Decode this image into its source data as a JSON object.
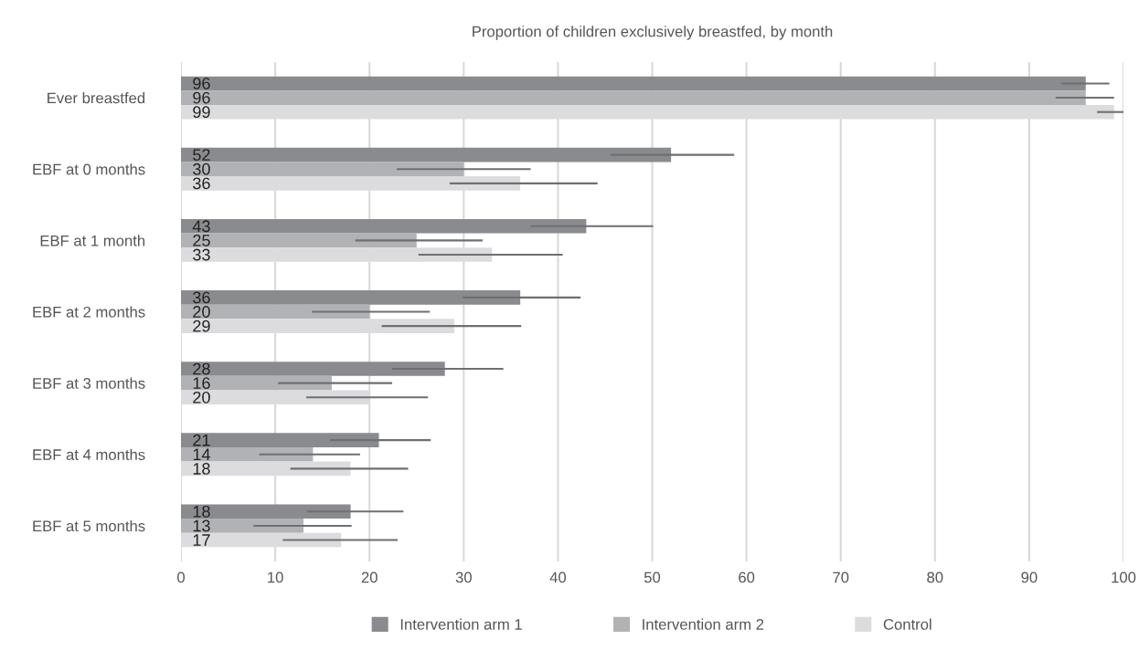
{
  "chart_data": {
    "type": "bar",
    "orientation": "horizontal",
    "title": "Proportion of children exclusively breastfed, by month",
    "categories": [
      "Ever breastfed",
      "EBF at 0 months",
      "EBF at 1 month",
      "EBF at 2 months",
      "EBF at 3 months",
      "EBF at 4 months",
      "EBF at 5 months"
    ],
    "series": [
      {
        "name": "Intervention arm 1",
        "color": "#8a8b8f",
        "values": [
          96,
          52,
          43,
          36,
          28,
          21,
          18
        ],
        "errors": [
          [
            93.5,
            98.4
          ],
          [
            45.7,
            58.6
          ],
          [
            37.2,
            50.0
          ],
          [
            30.0,
            42.3
          ],
          [
            22.5,
            34.1
          ],
          [
            15.9,
            26.4
          ],
          [
            13.5,
            23.5
          ]
        ]
      },
      {
        "name": "Intervention arm 2",
        "color": "#b1b2b5",
        "values": [
          96,
          30,
          25,
          20,
          16,
          14,
          13
        ],
        "errors": [
          [
            92.9,
            98.9
          ],
          [
            23.0,
            37.0
          ],
          [
            18.6,
            31.9
          ],
          [
            14.0,
            26.3
          ],
          [
            10.4,
            22.3
          ],
          [
            8.4,
            18.9
          ],
          [
            7.8,
            18.0
          ]
        ]
      },
      {
        "name": "Control",
        "color": "#dcdcde",
        "values": [
          99,
          36,
          33,
          29,
          20,
          18,
          17
        ],
        "errors": [
          [
            97.3,
            100
          ],
          [
            28.6,
            44.1
          ],
          [
            25.3,
            40.4
          ],
          [
            21.4,
            36.0
          ],
          [
            13.4,
            26.1
          ],
          [
            11.7,
            24.0
          ],
          [
            10.9,
            22.9
          ]
        ]
      }
    ],
    "xlim": [
      0,
      100
    ],
    "xticks": [
      0,
      10,
      20,
      30,
      40,
      50,
      60,
      70,
      80,
      90,
      100
    ],
    "grid": "x",
    "legend": "bottom",
    "data_labels": true
  }
}
